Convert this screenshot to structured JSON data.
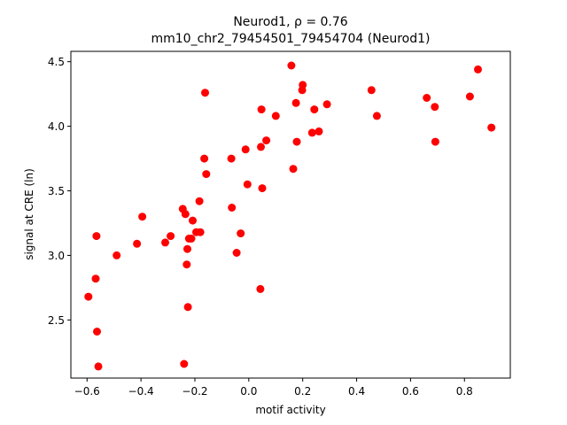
{
  "chart_data": {
    "type": "scatter",
    "title_line1": "Neurod1, ρ = 0.76",
    "title_line2": "mm10_chr2_79454501_79454704 (Neurod1)",
    "xlabel": "motif activity",
    "ylabel": "signal at CRE (ln)",
    "xlim": [
      -0.66,
      0.97
    ],
    "ylim": [
      2.05,
      4.58
    ],
    "xticks": [
      -0.6,
      -0.4,
      -0.2,
      0.0,
      0.2,
      0.4,
      0.6,
      0.8
    ],
    "xtick_labels": [
      "−0.6",
      "−0.4",
      "−0.2",
      "0.0",
      "0.2",
      "0.4",
      "0.6",
      "0.8"
    ],
    "yticks": [
      2.5,
      3.0,
      3.5,
      4.0,
      4.5
    ],
    "ytick_labels": [
      "2.5",
      "3.0",
      "3.5",
      "4.0",
      "4.5"
    ],
    "grid": false,
    "marker_color": "#ff0000",
    "points": [
      {
        "x": -0.595,
        "y": 2.68
      },
      {
        "x": -0.565,
        "y": 3.15
      },
      {
        "x": -0.568,
        "y": 2.82
      },
      {
        "x": -0.563,
        "y": 2.41
      },
      {
        "x": -0.558,
        "y": 2.14
      },
      {
        "x": -0.49,
        "y": 3.0
      },
      {
        "x": -0.415,
        "y": 3.09
      },
      {
        "x": -0.395,
        "y": 3.3
      },
      {
        "x": -0.31,
        "y": 3.1
      },
      {
        "x": -0.29,
        "y": 3.15
      },
      {
        "x": -0.245,
        "y": 3.36
      },
      {
        "x": -0.24,
        "y": 2.16
      },
      {
        "x": -0.235,
        "y": 3.32
      },
      {
        "x": -0.23,
        "y": 2.93
      },
      {
        "x": -0.228,
        "y": 3.05
      },
      {
        "x": -0.226,
        "y": 2.6
      },
      {
        "x": -0.222,
        "y": 3.13
      },
      {
        "x": -0.213,
        "y": 3.13
      },
      {
        "x": -0.208,
        "y": 3.27
      },
      {
        "x": -0.195,
        "y": 3.18
      },
      {
        "x": -0.183,
        "y": 3.42
      },
      {
        "x": -0.18,
        "y": 3.18
      },
      {
        "x": -0.165,
        "y": 3.75
      },
      {
        "x": -0.162,
        "y": 4.26
      },
      {
        "x": -0.158,
        "y": 3.63
      },
      {
        "x": -0.065,
        "y": 3.75
      },
      {
        "x": -0.063,
        "y": 3.37
      },
      {
        "x": -0.045,
        "y": 3.02
      },
      {
        "x": -0.03,
        "y": 3.17
      },
      {
        "x": -0.012,
        "y": 3.82
      },
      {
        "x": -0.005,
        "y": 3.55
      },
      {
        "x": 0.043,
        "y": 2.74
      },
      {
        "x": 0.045,
        "y": 3.84
      },
      {
        "x": 0.047,
        "y": 4.13
      },
      {
        "x": 0.05,
        "y": 3.52
      },
      {
        "x": 0.065,
        "y": 3.89
      },
      {
        "x": 0.1,
        "y": 4.08
      },
      {
        "x": 0.158,
        "y": 4.47
      },
      {
        "x": 0.165,
        "y": 3.67
      },
      {
        "x": 0.175,
        "y": 4.18
      },
      {
        "x": 0.178,
        "y": 3.88
      },
      {
        "x": 0.198,
        "y": 4.28
      },
      {
        "x": 0.2,
        "y": 4.32
      },
      {
        "x": 0.235,
        "y": 3.95
      },
      {
        "x": 0.243,
        "y": 4.13
      },
      {
        "x": 0.26,
        "y": 3.96
      },
      {
        "x": 0.29,
        "y": 4.17
      },
      {
        "x": 0.455,
        "y": 4.28
      },
      {
        "x": 0.475,
        "y": 4.08
      },
      {
        "x": 0.66,
        "y": 4.22
      },
      {
        "x": 0.69,
        "y": 4.15
      },
      {
        "x": 0.692,
        "y": 3.88
      },
      {
        "x": 0.82,
        "y": 4.23
      },
      {
        "x": 0.85,
        "y": 4.44
      },
      {
        "x": 0.9,
        "y": 3.99
      }
    ]
  }
}
